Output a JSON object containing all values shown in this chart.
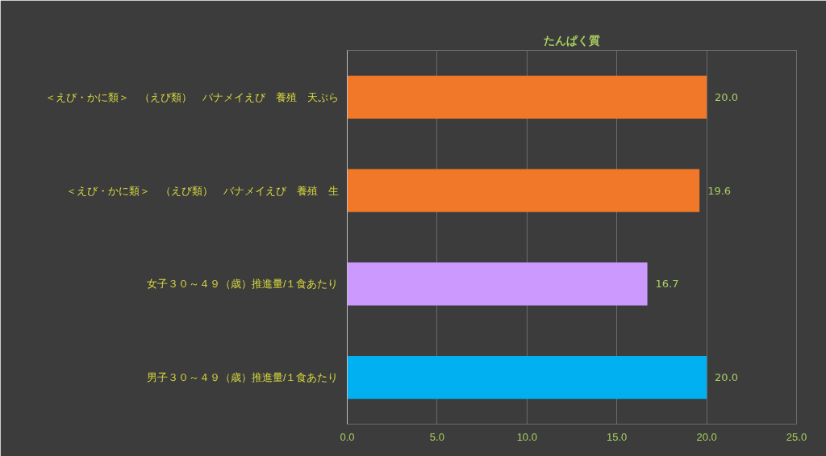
{
  "chart_data": {
    "type": "bar",
    "orientation": "horizontal",
    "title": "たんぱく質",
    "categories": [
      "＜えび・かに類＞　（えび類）　バナメイえび　養殖　天ぷら",
      "＜えび・かに類＞　（えび類）　バナメイえび　養殖　生",
      "女子３０～４９（歳）推進量/１食あたり",
      "男子３０～４９（歳）推進量/１食あたり"
    ],
    "values": [
      20.0,
      19.6,
      16.7,
      20.0
    ],
    "value_labels": [
      "20.0",
      "19.6",
      "16.7",
      "20.0"
    ],
    "colors": [
      "#f07828",
      "#f07828",
      "#cc99ff",
      "#00b0f0"
    ],
    "xlim": [
      0,
      25
    ],
    "xticks": [
      {
        "value": 0,
        "label": "0.0"
      },
      {
        "value": 5,
        "label": "5.0"
      },
      {
        "value": 10,
        "label": "10.0"
      },
      {
        "value": 15,
        "label": "15.0"
      },
      {
        "value": 20,
        "label": "20.0"
      },
      {
        "value": 25,
        "label": "25.0"
      }
    ],
    "grid": "x"
  }
}
